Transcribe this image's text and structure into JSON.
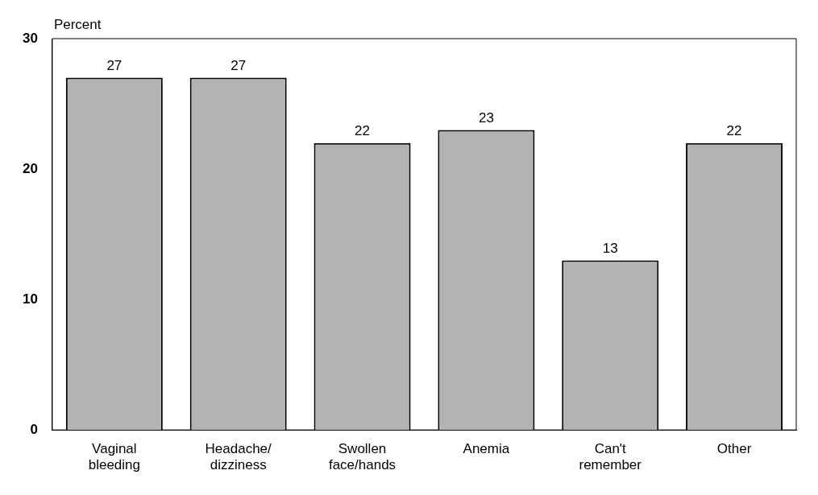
{
  "chart_data": {
    "type": "bar",
    "ylabel": "Percent",
    "categories": [
      "Vaginal\nbleeding",
      "Headache/\ndizziness",
      "Swollen\nface/hands",
      "Anemia",
      "Can't\nremember",
      "Other"
    ],
    "values": [
      27,
      27,
      22,
      23,
      13,
      22
    ],
    "color": "#b3b3b3",
    "ylim": [
      0,
      30
    ],
    "yticks": [
      0,
      10,
      20,
      30
    ],
    "grid": false,
    "legend": false,
    "data_labels": true
  }
}
